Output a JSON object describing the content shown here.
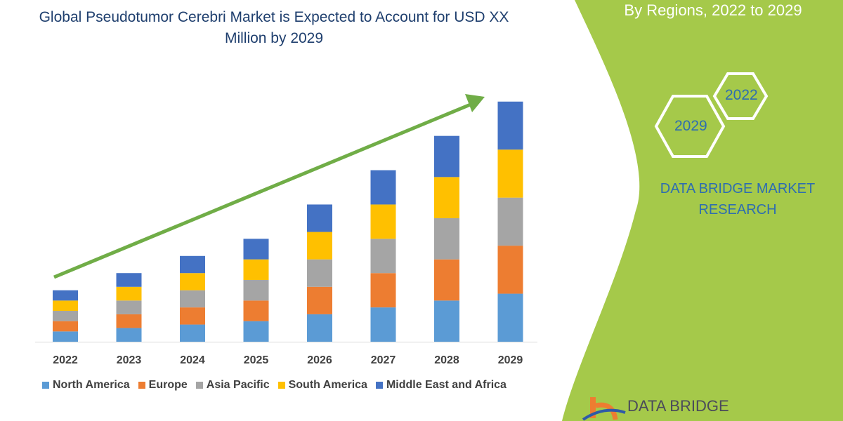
{
  "title": "Global Pseudotumor Cerebri Market is Expected to Account for USD XX Million by 2029",
  "right_panel": {
    "subtitle": "By Regions, 2022 to 2029",
    "hex_years": [
      "2022",
      "2029"
    ],
    "brand": "DATA BRIDGE MARKET RESEARCH",
    "logo_text": "DATA BRIDGE",
    "panel_color": "#a5c94a"
  },
  "chart_data": {
    "type": "bar",
    "stacked": true,
    "title": "Global Pseudotumor Cerebri Market is Expected to Account for USD XX Million by 2029",
    "categories": [
      "2022",
      "2023",
      "2024",
      "2025",
      "2026",
      "2027",
      "2028",
      "2029"
    ],
    "series": [
      {
        "name": "North America",
        "color": "#5b9bd5",
        "values": [
          15,
          20,
          25,
          30,
          40,
          50,
          60,
          70
        ]
      },
      {
        "name": "Europe",
        "color": "#ed7d31",
        "values": [
          15,
          20,
          25,
          30,
          40,
          50,
          60,
          70
        ]
      },
      {
        "name": "Asia Pacific",
        "color": "#a5a5a5",
        "values": [
          15,
          20,
          25,
          30,
          40,
          50,
          60,
          70
        ]
      },
      {
        "name": "South America",
        "color": "#ffc000",
        "values": [
          15,
          20,
          25,
          30,
          40,
          50,
          60,
          70
        ]
      },
      {
        "name": "Middle East and Africa",
        "color": "#4472c4",
        "values": [
          15,
          20,
          25,
          30,
          40,
          50,
          60,
          70
        ]
      }
    ],
    "ylim": [
      0,
      360
    ],
    "grid": false,
    "legend_position": "bottom",
    "trend_arrow_color": "#70ad47"
  }
}
